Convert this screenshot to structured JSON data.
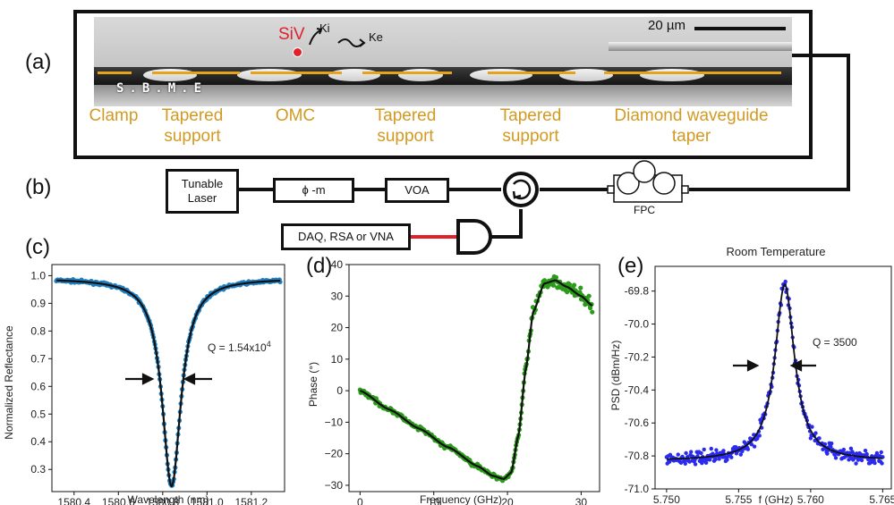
{
  "panel_labels": {
    "a": "(a)",
    "b": "(b)",
    "c": "(c)",
    "d": "(d)",
    "e": "(e)"
  },
  "panel_a": {
    "scale_bar": "20 µm",
    "siv": "SiV",
    "kappa_i": "Κi",
    "kappa_e": "Κe",
    "brand_text": "S.B.M.E",
    "sections": [
      "Clamp",
      "Tapered support",
      "OMC",
      "Tapered support",
      "Tapered support",
      "Diamond waveguide taper"
    ]
  },
  "panel_b": {
    "laser": "Tunable Laser",
    "phase_mod": "ϕ -m",
    "voa": "VOA",
    "fpc": "FPC",
    "daq": "DAQ, RSA or VNA"
  },
  "colors": {
    "orange": "#e4a21d",
    "red": "#e0202a",
    "blue_data": "#1f7fc0",
    "green_data": "#2c9a1b",
    "purple_data": "#2a2af0"
  },
  "chart_data": [
    {
      "type": "scatter",
      "panel": "(c)",
      "xlabel": "Wavelength (nm)",
      "ylabel": "Normalized Reflectance",
      "annotation": "Q = 1.54x10",
      "annotation_exp": "4",
      "xlim": [
        1580.3,
        1581.35
      ],
      "ylim": [
        0.22,
        1.04
      ],
      "xticks": [
        1580.4,
        1580.6,
        1580.8,
        1581.0,
        1581.2
      ],
      "xtick_labels": [
        "1580.4",
        "1580.6",
        "1580.8",
        "1581.0",
        "1581.2"
      ],
      "yticks": [
        0.3,
        0.4,
        0.5,
        0.6,
        0.7,
        0.8,
        0.9,
        1.0
      ],
      "ytick_labels": [
        "0.3",
        "0.4",
        "0.5",
        "0.6",
        "0.7",
        "0.8",
        "0.9",
        "1.0"
      ],
      "fit": {
        "model": "lorentzian_dip",
        "center": 1580.84,
        "fwhm": 0.103,
        "baseline": 0.99,
        "minimum": 0.24,
        "x_range": [
          1580.32,
          1581.33
        ]
      },
      "data_color": "#1f7fc0"
    },
    {
      "type": "scatter",
      "panel": "(d)",
      "xlabel": "Frequency (GHz)",
      "ylabel": "Phase (°)",
      "xlim": [
        -1.5,
        32.5
      ],
      "ylim": [
        -32,
        40
      ],
      "xticks": [
        0,
        10,
        20,
        30
      ],
      "xtick_labels": [
        "0",
        "10",
        "20",
        "30"
      ],
      "yticks": [
        -30,
        -20,
        -10,
        0,
        10,
        20,
        30,
        40
      ],
      "ytick_labels": [
        "−30",
        "−20",
        "−10",
        "0",
        "10",
        "20",
        "30",
        "40"
      ],
      "fit_points": {
        "x": [
          0,
          4,
          8,
          12,
          16,
          18,
          19.5,
          20.5,
          21.5,
          22.5,
          23.5,
          25,
          26.5,
          28,
          30,
          31.5
        ],
        "y": [
          0,
          -6,
          -12,
          -18,
          -24,
          -27,
          -28,
          -26,
          -14,
          7,
          25,
          34,
          35,
          33,
          30,
          27
        ]
      },
      "data_color": "#2c9a1b"
    },
    {
      "type": "scatter",
      "panel": "(e)",
      "title": "Room Temperature",
      "xlabel": "f (GHz)",
      "ylabel": "PSD (dBm/Hz)",
      "annotation": "Q = 3500",
      "xlim": [
        5.7492,
        5.7656
      ],
      "ylim": [
        -71.0,
        -69.65
      ],
      "xticks": [
        5.75,
        5.755,
        5.76,
        5.765
      ],
      "xtick_labels": [
        "5.750",
        "5.755",
        "5.760",
        "5.765"
      ],
      "yticks": [
        -71.0,
        -70.8,
        -70.6,
        -70.4,
        -70.2,
        -70.0,
        -69.8
      ],
      "ytick_labels": [
        "-71.0",
        "-70.8",
        "-70.6",
        "-70.4",
        "-70.2",
        "-70.0",
        "-69.8"
      ],
      "fit": {
        "model": "lorentzian_peak",
        "center": 5.7582,
        "fwhm": 0.00165,
        "baseline": -70.83,
        "peak": -69.76,
        "x_range": [
          5.75,
          5.765
        ]
      },
      "data_color": "#2a2af0"
    }
  ]
}
